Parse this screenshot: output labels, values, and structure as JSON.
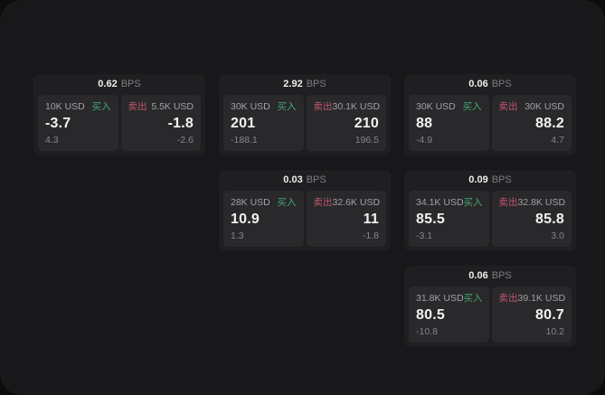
{
  "labels": {
    "bps_unit": "BPS",
    "buy": "买入",
    "sell": "卖出"
  },
  "colors": {
    "buy_green": "#46a56d",
    "sell_red": "#c2566b"
  },
  "cards": [
    {
      "bps": "0.62",
      "buy": {
        "size": "10K USD",
        "price": "-3.7",
        "change": "4.3"
      },
      "sell": {
        "size": "5.5K USD",
        "price": "-1.8",
        "change": "-2.6"
      }
    },
    {
      "bps": "2.92",
      "buy": {
        "size": "30K USD",
        "price": "201",
        "change": "-188.1"
      },
      "sell": {
        "size": "30.1K USD",
        "price": "210",
        "change": "196.5"
      }
    },
    {
      "bps": "0.06",
      "buy": {
        "size": "30K USD",
        "price": "88",
        "change": "-4.9"
      },
      "sell": {
        "size": "30K USD",
        "price": "88.2",
        "change": "4.7"
      }
    },
    {
      "bps": "0.03",
      "buy": {
        "size": "28K USD",
        "price": "10.9",
        "change": "1.3"
      },
      "sell": {
        "size": "32.6K USD",
        "price": "11",
        "change": "-1.8"
      }
    },
    {
      "bps": "0.09",
      "buy": {
        "size": "34.1K USD",
        "price": "85.5",
        "change": "-3.1"
      },
      "sell": {
        "size": "32.8K USD",
        "price": "85.8",
        "change": "3.0"
      }
    },
    {
      "bps": "0.06",
      "buy": {
        "size": "31.8K USD",
        "price": "80.5",
        "change": "-10.8"
      },
      "sell": {
        "size": "39.1K USD",
        "price": "80.7",
        "change": "10.2"
      }
    }
  ]
}
